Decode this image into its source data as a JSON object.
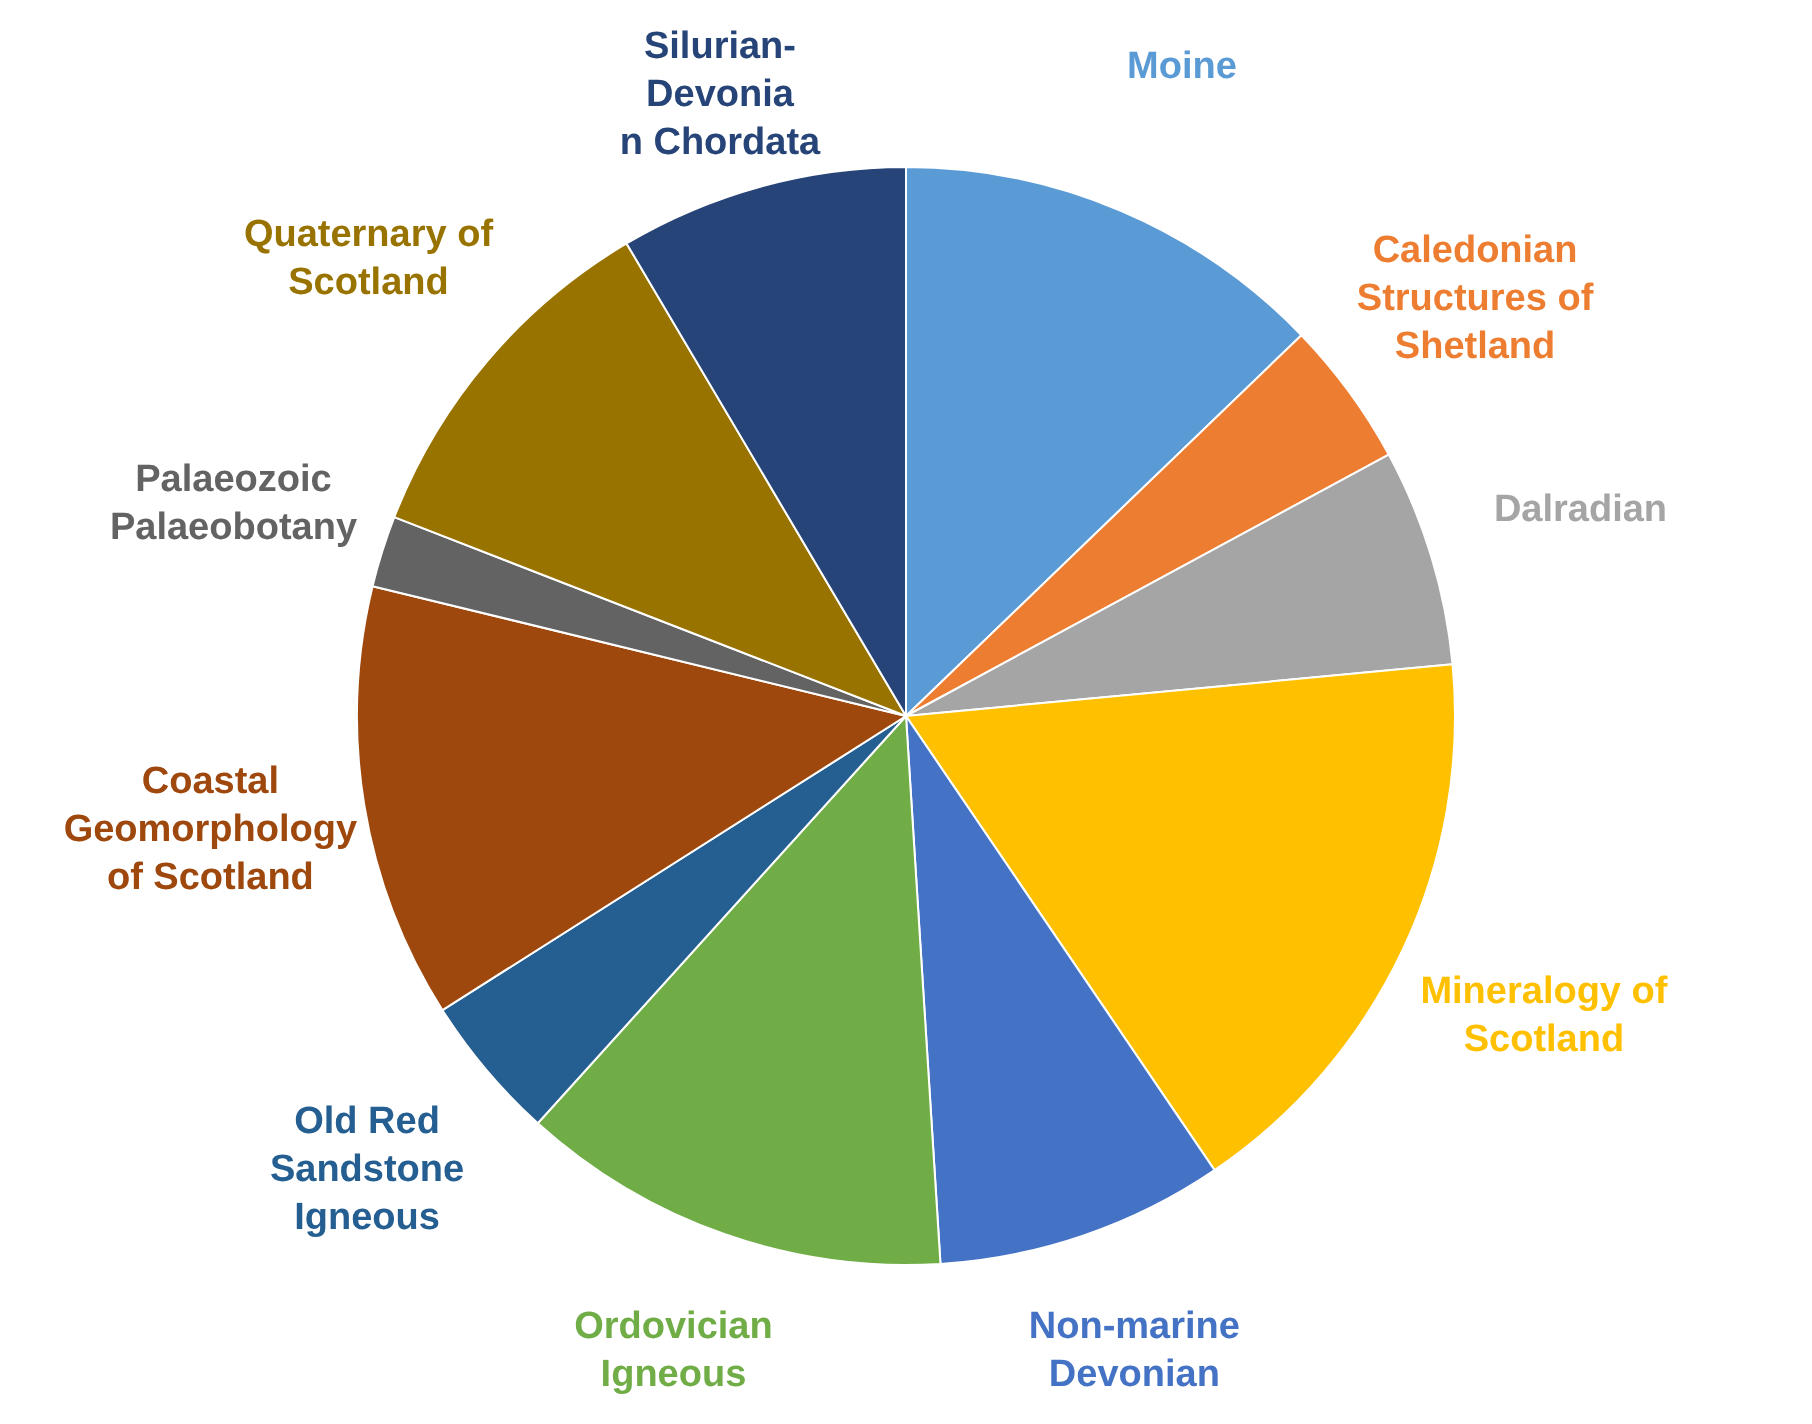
{
  "chart_data": {
    "type": "pie",
    "categories": [
      "Moine",
      "Caledonian Structures of Shetland",
      "Dalradian",
      "Mineralogy of Scotland",
      "Non-marine Devonian",
      "Ordovician Igneous",
      "Old Red Sandstone Igneous",
      "Coastal Geomorphology of Scotland",
      "Palaeozoic Palaeobotany",
      "Quaternary of Scotland",
      "Silurian-Devonian Chordata"
    ],
    "values": [
      12.8,
      4.3,
      6.4,
      17,
      8.5,
      12.7,
      4.3,
      12.8,
      2.1,
      10.6,
      8.5
    ],
    "colors": [
      "#5b9bd5",
      "#ed7d31",
      "#a5a5a5",
      "#ffc000",
      "#4472c4",
      "#70ad47",
      "#255e91",
      "#9e480e",
      "#636363",
      "#997300",
      "#264478"
    ],
    "legend": false
  }
}
